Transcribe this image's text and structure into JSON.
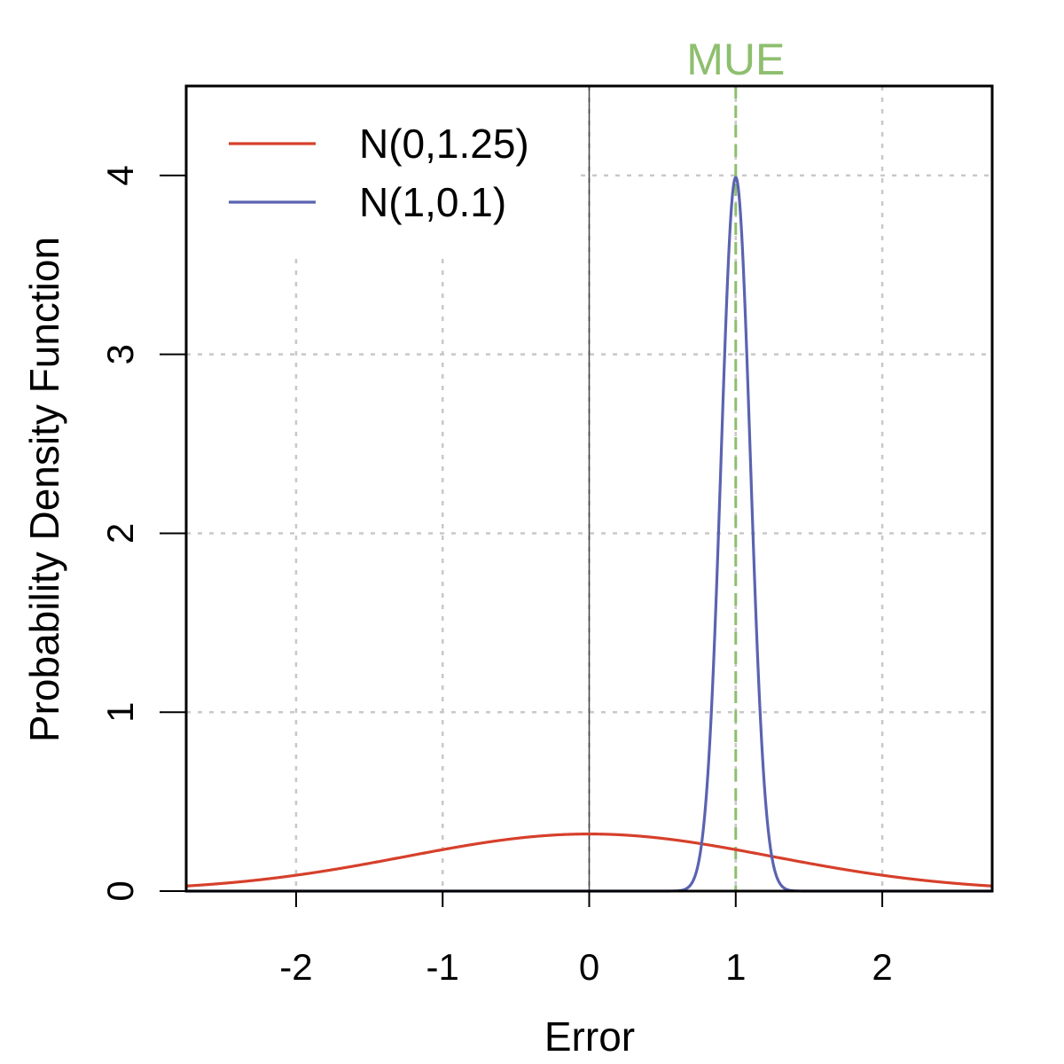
{
  "chart_data": {
    "type": "line",
    "title": "",
    "xlabel": "Error",
    "ylabel": "Probability Density Function",
    "xlim": [
      -2.75,
      2.75
    ],
    "ylim": [
      0,
      4.5
    ],
    "x_ticks": [
      -2,
      -1,
      0,
      1,
      2
    ],
    "x_tick_labels": [
      "-2",
      "-1",
      "0",
      "1",
      "2"
    ],
    "y_ticks": [
      0,
      1,
      2,
      3,
      4
    ],
    "y_tick_labels": [
      "0",
      "1",
      "2",
      "3",
      "4"
    ],
    "grid": true,
    "legend_position": "top-left",
    "series": [
      {
        "name": "N(0,1.25)",
        "distribution": "normal",
        "mean": 0,
        "sd": 1.25,
        "color": "#d6402b"
      },
      {
        "name": "N(1,0.1)",
        "distribution": "normal",
        "mean": 1,
        "sd": 0.1,
        "color": "#5b63b0"
      }
    ],
    "annotations": [
      {
        "type": "vline",
        "x": 1,
        "label": "MUE",
        "color": "#8dbf6e",
        "style": "dashed"
      },
      {
        "type": "vline",
        "x": 0,
        "color": "#444444",
        "style": "solid"
      }
    ]
  }
}
